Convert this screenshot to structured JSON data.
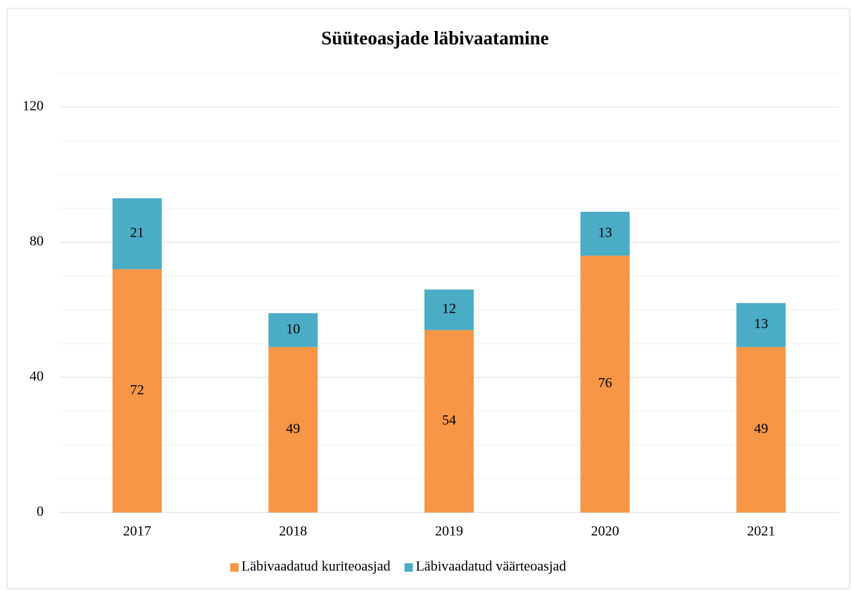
{
  "chart_data": {
    "type": "stacked_bar",
    "title": "Süüteoasjade läbivaatamine",
    "categories": [
      "2017",
      "2018",
      "2019",
      "2020",
      "2021"
    ],
    "series": [
      {
        "name": "Läbivaadatud kuriteoasjad",
        "color": "#f79646",
        "values": [
          72,
          49,
          54,
          76,
          49
        ]
      },
      {
        "name": "Läbivaadatud väärteoasjad",
        "color": "#4bacc6",
        "values": [
          21,
          10,
          12,
          13,
          13
        ]
      }
    ],
    "ylim": [
      0,
      130
    ],
    "yticks": [
      0,
      40,
      80,
      120
    ],
    "minor_yticks": [
      10,
      20,
      30,
      50,
      60,
      70,
      90,
      100,
      110,
      130
    ],
    "grid": true,
    "legend": "bottom"
  }
}
